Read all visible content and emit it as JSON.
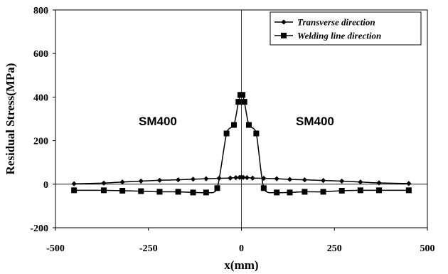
{
  "chart_data": {
    "type": "line",
    "title": "",
    "xlabel": "x(mm)",
    "ylabel": "Residual Stress(MPa)",
    "xlim": [
      -500,
      500
    ],
    "ylim": [
      -200,
      800
    ],
    "x_ticks": [
      "-500",
      "-250",
      "0",
      "250",
      "500"
    ],
    "y_ticks": [
      "-200",
      "0",
      "200",
      "400",
      "600",
      "800"
    ],
    "grid": false,
    "legend_position": "top-right",
    "annotations": [
      "SM400",
      "SM400"
    ],
    "series": [
      {
        "name": "Transverse direction",
        "marker": "diamond",
        "x": [
          -450,
          -370,
          -320,
          -270,
          -220,
          -170,
          -130,
          -95,
          -60,
          -30,
          -15,
          -5,
          0,
          5,
          15,
          30,
          60,
          95,
          130,
          170,
          220,
          270,
          320,
          370,
          450
        ],
        "y": [
          2,
          5,
          10,
          14,
          18,
          20,
          23,
          25,
          27,
          28,
          30,
          31,
          32,
          31,
          30,
          28,
          27,
          25,
          22,
          20,
          17,
          14,
          10,
          6,
          3
        ]
      },
      {
        "name": "Welding line direction",
        "marker": "square",
        "x": [
          -450,
          -370,
          -320,
          -270,
          -220,
          -170,
          -130,
          -95,
          -65,
          -40,
          -20,
          -8,
          -3,
          3,
          8,
          20,
          40,
          60,
          95,
          130,
          170,
          220,
          270,
          320,
          370,
          450
        ],
        "y": [
          -28,
          -28,
          -30,
          -32,
          -35,
          -35,
          -38,
          -38,
          -18,
          233,
          272,
          378,
          410,
          410,
          378,
          272,
          233,
          -18,
          -38,
          -38,
          -35,
          -35,
          -30,
          -28,
          -28,
          -28
        ]
      }
    ]
  }
}
